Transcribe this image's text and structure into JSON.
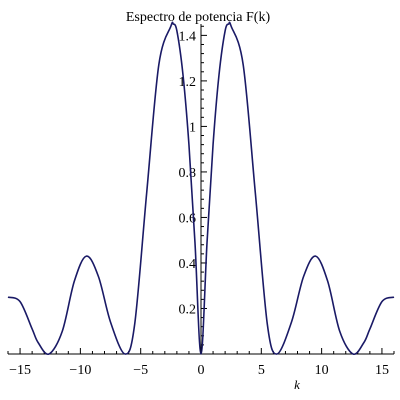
{
  "chart_data": {
    "type": "line",
    "title": "Espectro de potencia F(k)",
    "xlabel": "k",
    "ylabel": "",
    "xlim": [
      -16,
      16
    ],
    "ylim": [
      0,
      1.45
    ],
    "x_ticks": [
      -15,
      -10,
      -5,
      0,
      5,
      10,
      15
    ],
    "x_tick_labels": [
      "−15",
      "−10",
      "−5",
      "0",
      "5",
      "10",
      "15"
    ],
    "y_ticks": [
      0.2,
      0.4,
      0.6,
      0.8,
      1,
      1.2,
      1.4
    ],
    "y_tick_labels": [
      "0.2",
      "0.4",
      "0.6",
      "0.8",
      "1",
      "1.2",
      "1.4"
    ],
    "grid": false,
    "legend": "none",
    "line_color": "#1a1a66",
    "series": [
      {
        "x": [
          -16,
          -15,
          -14,
          -13.5,
          -12.6,
          -11.5,
          -10.5,
          -9.5,
          -8.5,
          -7.5,
          -6.3,
          -5.5,
          -4.5,
          -3.5,
          -2.5,
          -2.3,
          -2,
          -1.5,
          -1,
          -0.5,
          0,
          0.5,
          1,
          1.5,
          2,
          2.3,
          2.5,
          3.5,
          4.5,
          5.5,
          6.3,
          7.5,
          8.5,
          9.5,
          10.5,
          11.5,
          12.6,
          13.5,
          14,
          15,
          16
        ],
        "y": [
          0.25,
          0.23,
          0.11,
          0.05,
          0.0,
          0.1,
          0.32,
          0.43,
          0.34,
          0.14,
          0.0,
          0.13,
          0.71,
          1.27,
          1.44,
          1.45,
          1.42,
          1.23,
          0.92,
          0.49,
          0.0,
          0.49,
          0.92,
          1.23,
          1.42,
          1.45,
          1.44,
          1.27,
          0.71,
          0.13,
          0.0,
          0.14,
          0.34,
          0.43,
          0.32,
          0.1,
          0.0,
          0.05,
          0.11,
          0.23,
          0.25
        ]
      }
    ]
  }
}
